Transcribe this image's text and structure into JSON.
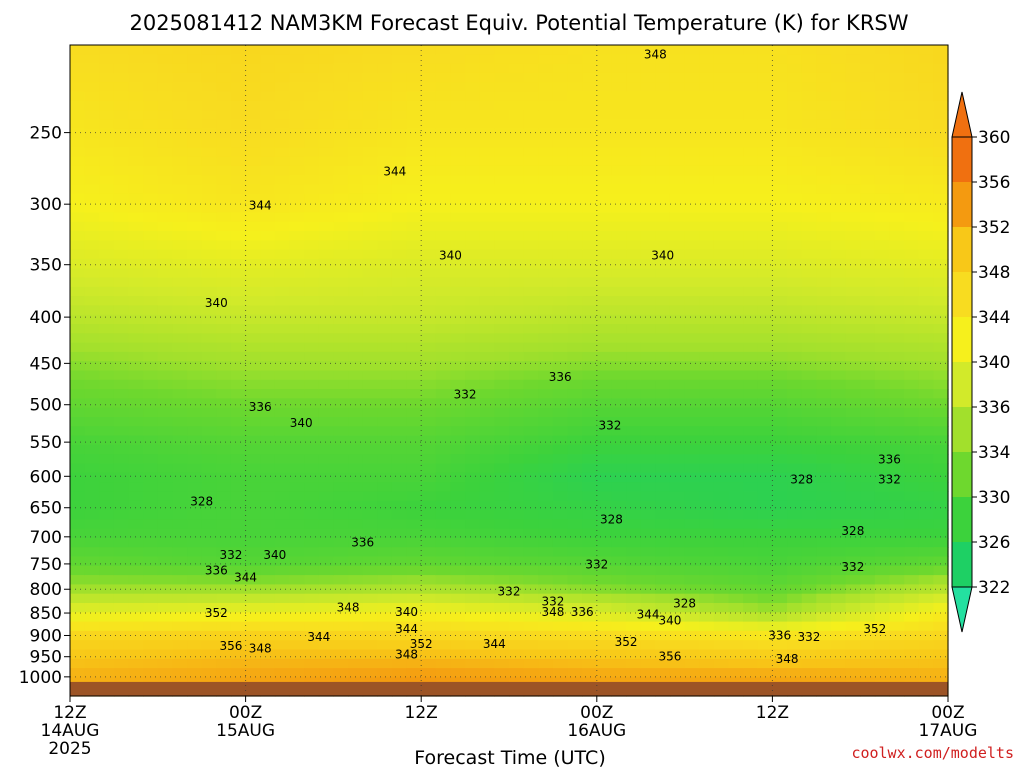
{
  "title": "2025081412 NAM3KM Forecast Equiv. Potential Temperature (K) for KRSW",
  "credit": "coolwx.com/modelts",
  "chart_data": {
    "type": "heatmap",
    "title": "2025081412 NAM3KM Forecast Equiv. Potential Temperature (K) for KRSW",
    "xlabel": "Forecast Time (UTC)",
    "ylabel": "",
    "y_axis": {
      "unit": "pressure (hPa)",
      "range": [
        1050,
        200
      ],
      "ticks": [
        1000,
        950,
        900,
        850,
        800,
        750,
        700,
        650,
        600,
        550,
        500,
        450,
        400,
        350,
        300,
        250
      ],
      "scale": "log"
    },
    "x_axis": {
      "unit": "forecast hour",
      "range": [
        0,
        60
      ],
      "ticks": [
        {
          "hour": 0,
          "lines": [
            "12Z",
            "14AUG",
            "2025"
          ]
        },
        {
          "hour": 12,
          "lines": [
            "00Z",
            "15AUG"
          ]
        },
        {
          "hour": 24,
          "lines": [
            "12Z"
          ]
        },
        {
          "hour": 36,
          "lines": [
            "00Z",
            "16AUG"
          ]
        },
        {
          "hour": 48,
          "lines": [
            "12Z"
          ]
        },
        {
          "hour": 60,
          "lines": [
            "00Z",
            "17AUG"
          ]
        }
      ]
    },
    "grid": true,
    "colorbar": {
      "placement": "right",
      "ticks": [
        360,
        356,
        352,
        348,
        344,
        340,
        336,
        334,
        330,
        326,
        322
      ],
      "colors": [
        "#f07010",
        "#f49a10",
        "#f8c818",
        "#f8dc20",
        "#f6f01c",
        "#d2ea2a",
        "#a2e02c",
        "#6ed82e",
        "#3cd23c",
        "#1ed064",
        "#24e0a0"
      ]
    },
    "profile_levels": [
      1000,
      950,
      900,
      850,
      800,
      750,
      700,
      650,
      600,
      550,
      500,
      450,
      400,
      350,
      300,
      250,
      200
    ],
    "profiles": [
      {
        "hour": 0,
        "theta_e": [
          354,
          352,
          349,
          342,
          336,
          333,
          331,
          330,
          330,
          331,
          333,
          335,
          338,
          341,
          344,
          346,
          348
        ]
      },
      {
        "hour": 12,
        "theta_e": [
          355,
          353,
          350,
          343,
          336,
          332,
          331,
          331,
          331,
          332,
          334,
          336,
          339,
          342,
          346,
          348,
          349
        ]
      },
      {
        "hour": 24,
        "theta_e": [
          356,
          353,
          349,
          344,
          337,
          333,
          331,
          330,
          331,
          332,
          334,
          336,
          339,
          341,
          344,
          346,
          348
        ]
      },
      {
        "hour": 36,
        "theta_e": [
          355,
          352,
          348,
          341,
          335,
          332,
          330,
          329,
          328,
          330,
          332,
          335,
          338,
          341,
          344,
          346,
          347
        ]
      },
      {
        "hour": 48,
        "theta_e": [
          355,
          351,
          346,
          336,
          333,
          331,
          330,
          328,
          328,
          330,
          332,
          335,
          338,
          341,
          344,
          346,
          347
        ]
      },
      {
        "hour": 60,
        "theta_e": [
          354,
          352,
          349,
          345,
          338,
          333,
          330,
          329,
          330,
          331,
          334,
          336,
          339,
          342,
          345,
          348,
          349
        ]
      }
    ],
    "contour_labels": [
      {
        "text": "348",
        "hour": 40.0,
        "p": 205
      },
      {
        "text": "344",
        "hour": 22.2,
        "p": 276
      },
      {
        "text": "344",
        "hour": 13.0,
        "p": 301
      },
      {
        "text": "340",
        "hour": 26.0,
        "p": 342
      },
      {
        "text": "340",
        "hour": 40.5,
        "p": 342
      },
      {
        "text": "340",
        "hour": 10.0,
        "p": 386
      },
      {
        "text": "336",
        "hour": 33.5,
        "p": 466
      },
      {
        "text": "332",
        "hour": 27.0,
        "p": 487
      },
      {
        "text": "336",
        "hour": 13.0,
        "p": 503
      },
      {
        "text": "340",
        "hour": 15.8,
        "p": 524
      },
      {
        "text": "332",
        "hour": 36.9,
        "p": 527
      },
      {
        "text": "336",
        "hour": 56.0,
        "p": 575
      },
      {
        "text": "332",
        "hour": 56.0,
        "p": 605
      },
      {
        "text": "328",
        "hour": 50.0,
        "p": 605
      },
      {
        "text": "328",
        "hour": 9.0,
        "p": 640
      },
      {
        "text": "328",
        "hour": 37.0,
        "p": 670
      },
      {
        "text": "328",
        "hour": 53.5,
        "p": 690
      },
      {
        "text": "336",
        "hour": 20.0,
        "p": 710
      },
      {
        "text": "332",
        "hour": 11.0,
        "p": 733
      },
      {
        "text": "340",
        "hour": 14.0,
        "p": 733
      },
      {
        "text": "332",
        "hour": 36.0,
        "p": 751
      },
      {
        "text": "336",
        "hour": 10.0,
        "p": 763
      },
      {
        "text": "344",
        "hour": 12.0,
        "p": 776
      },
      {
        "text": "332",
        "hour": 53.5,
        "p": 756
      },
      {
        "text": "332",
        "hour": 30.0,
        "p": 805
      },
      {
        "text": "332",
        "hour": 33.0,
        "p": 825
      },
      {
        "text": "328",
        "hour": 42.0,
        "p": 830
      },
      {
        "text": "348",
        "hour": 19.0,
        "p": 838
      },
      {
        "text": "340",
        "hour": 23.0,
        "p": 848
      },
      {
        "text": "348",
        "hour": 33.0,
        "p": 848
      },
      {
        "text": "336",
        "hour": 35.0,
        "p": 848
      },
      {
        "text": "344",
        "hour": 39.5,
        "p": 853
      },
      {
        "text": "340",
        "hour": 41.0,
        "p": 866
      },
      {
        "text": "352",
        "hour": 10.0,
        "p": 850
      },
      {
        "text": "344",
        "hour": 23.0,
        "p": 885
      },
      {
        "text": "344",
        "hour": 17.0,
        "p": 904
      },
      {
        "text": "336",
        "hour": 48.5,
        "p": 900
      },
      {
        "text": "332",
        "hour": 50.5,
        "p": 904
      },
      {
        "text": "352",
        "hour": 55.0,
        "p": 885
      },
      {
        "text": "356",
        "hour": 11.0,
        "p": 925
      },
      {
        "text": "348",
        "hour": 13.0,
        "p": 930
      },
      {
        "text": "352",
        "hour": 24.0,
        "p": 920
      },
      {
        "text": "344",
        "hour": 29.0,
        "p": 920
      },
      {
        "text": "352",
        "hour": 38.0,
        "p": 915
      },
      {
        "text": "348",
        "hour": 23.0,
        "p": 945
      },
      {
        "text": "356",
        "hour": 41.0,
        "p": 950
      },
      {
        "text": "348",
        "hour": 49.0,
        "p": 955
      }
    ]
  }
}
